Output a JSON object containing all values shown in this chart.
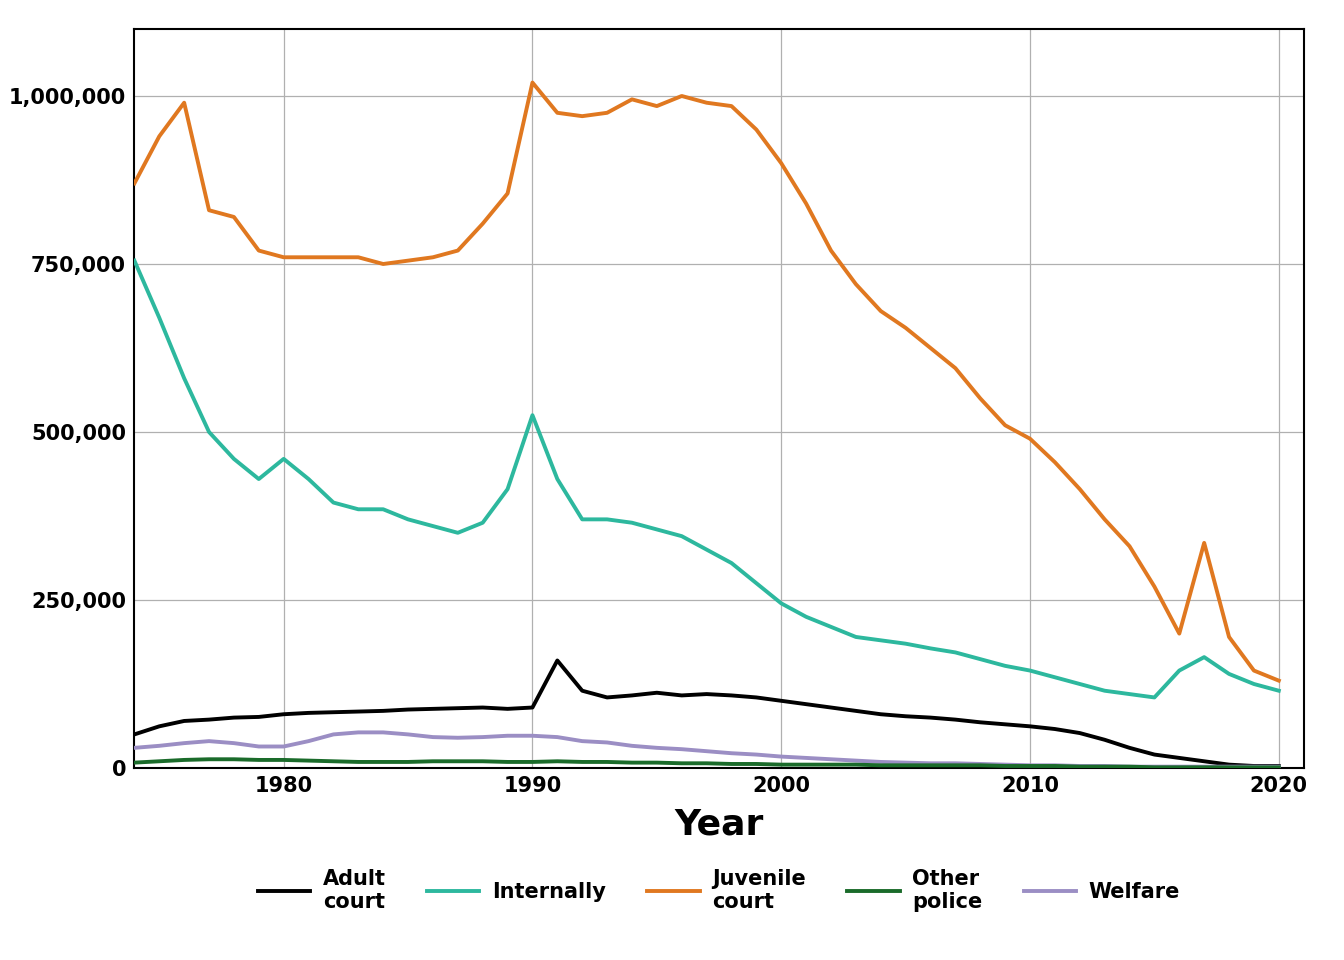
{
  "years": [
    1974,
    1975,
    1976,
    1977,
    1978,
    1979,
    1980,
    1981,
    1982,
    1983,
    1984,
    1985,
    1986,
    1987,
    1988,
    1989,
    1990,
    1991,
    1992,
    1993,
    1994,
    1995,
    1996,
    1997,
    1998,
    1999,
    2000,
    2001,
    2002,
    2003,
    2004,
    2005,
    2006,
    2007,
    2008,
    2009,
    2010,
    2011,
    2012,
    2013,
    2014,
    2015,
    2016,
    2017,
    2018,
    2019,
    2020
  ],
  "adult_court": [
    50000,
    62000,
    70000,
    72000,
    75000,
    76000,
    80000,
    82000,
    83000,
    84000,
    85000,
    87000,
    88000,
    89000,
    90000,
    88000,
    90000,
    160000,
    115000,
    105000,
    108000,
    112000,
    108000,
    110000,
    108000,
    105000,
    100000,
    95000,
    90000,
    85000,
    80000,
    77000,
    75000,
    72000,
    68000,
    65000,
    62000,
    58000,
    52000,
    42000,
    30000,
    20000,
    15000,
    10000,
    5000,
    3000,
    3000
  ],
  "internally": [
    755000,
    670000,
    580000,
    500000,
    460000,
    430000,
    460000,
    430000,
    395000,
    385000,
    385000,
    370000,
    360000,
    350000,
    365000,
    415000,
    525000,
    430000,
    370000,
    370000,
    365000,
    355000,
    345000,
    325000,
    305000,
    275000,
    245000,
    225000,
    210000,
    195000,
    190000,
    185000,
    178000,
    172000,
    162000,
    152000,
    145000,
    135000,
    125000,
    115000,
    110000,
    105000,
    145000,
    165000,
    140000,
    125000,
    115000
  ],
  "juvenile_court": [
    870000,
    940000,
    990000,
    830000,
    820000,
    770000,
    760000,
    760000,
    760000,
    760000,
    750000,
    755000,
    760000,
    770000,
    810000,
    855000,
    1020000,
    975000,
    970000,
    975000,
    995000,
    985000,
    1000000,
    990000,
    985000,
    950000,
    900000,
    840000,
    770000,
    720000,
    680000,
    655000,
    625000,
    595000,
    550000,
    510000,
    490000,
    455000,
    415000,
    370000,
    330000,
    270000,
    200000,
    335000,
    195000,
    145000,
    130000
  ],
  "other_police": [
    8000,
    10000,
    12000,
    13000,
    13000,
    12000,
    12000,
    11000,
    10000,
    9000,
    9000,
    9000,
    10000,
    10000,
    10000,
    9000,
    9000,
    10000,
    9000,
    9000,
    8000,
    8000,
    7000,
    7000,
    6000,
    6000,
    5000,
    5000,
    5000,
    5000,
    4000,
    4000,
    4000,
    4000,
    4000,
    3000,
    3000,
    3000,
    2000,
    2000,
    2000,
    1000,
    1000,
    1000,
    1000,
    1000,
    1000
  ],
  "welfare": [
    30000,
    33000,
    37000,
    40000,
    37000,
    32000,
    32000,
    40000,
    50000,
    53000,
    53000,
    50000,
    46000,
    45000,
    46000,
    48000,
    48000,
    46000,
    40000,
    38000,
    33000,
    30000,
    28000,
    25000,
    22000,
    20000,
    17000,
    15000,
    13000,
    11000,
    9000,
    8000,
    7000,
    7000,
    6000,
    5000,
    4000,
    4000,
    3000,
    3000,
    2000,
    2000,
    2000,
    2000,
    2000,
    2000,
    2000
  ],
  "colors": {
    "adult_court": "#000000",
    "internally": "#2db89e",
    "juvenile_court": "#e07820",
    "other_police": "#1a6b2a",
    "welfare": "#9b8ec4"
  },
  "labels": {
    "adult_court": "Adult\ncourt",
    "internally": "Internally",
    "juvenile_court": "Juvenile\ncourt",
    "other_police": "Other\npolice",
    "welfare": "Welfare"
  },
  "xlabel": "Year",
  "ylim": [
    0,
    1100000
  ],
  "yticks": [
    0,
    250000,
    500000,
    750000,
    1000000
  ],
  "ytick_labels": [
    "0",
    "250,000",
    "500,000",
    "750,000",
    "1,000,000"
  ],
  "xticks": [
    1980,
    1990,
    2000,
    2010,
    2020
  ],
  "xlim": [
    1974,
    2021
  ],
  "linewidth": 2.8,
  "background_color": "#ffffff",
  "grid_color": "#b0b0b0"
}
